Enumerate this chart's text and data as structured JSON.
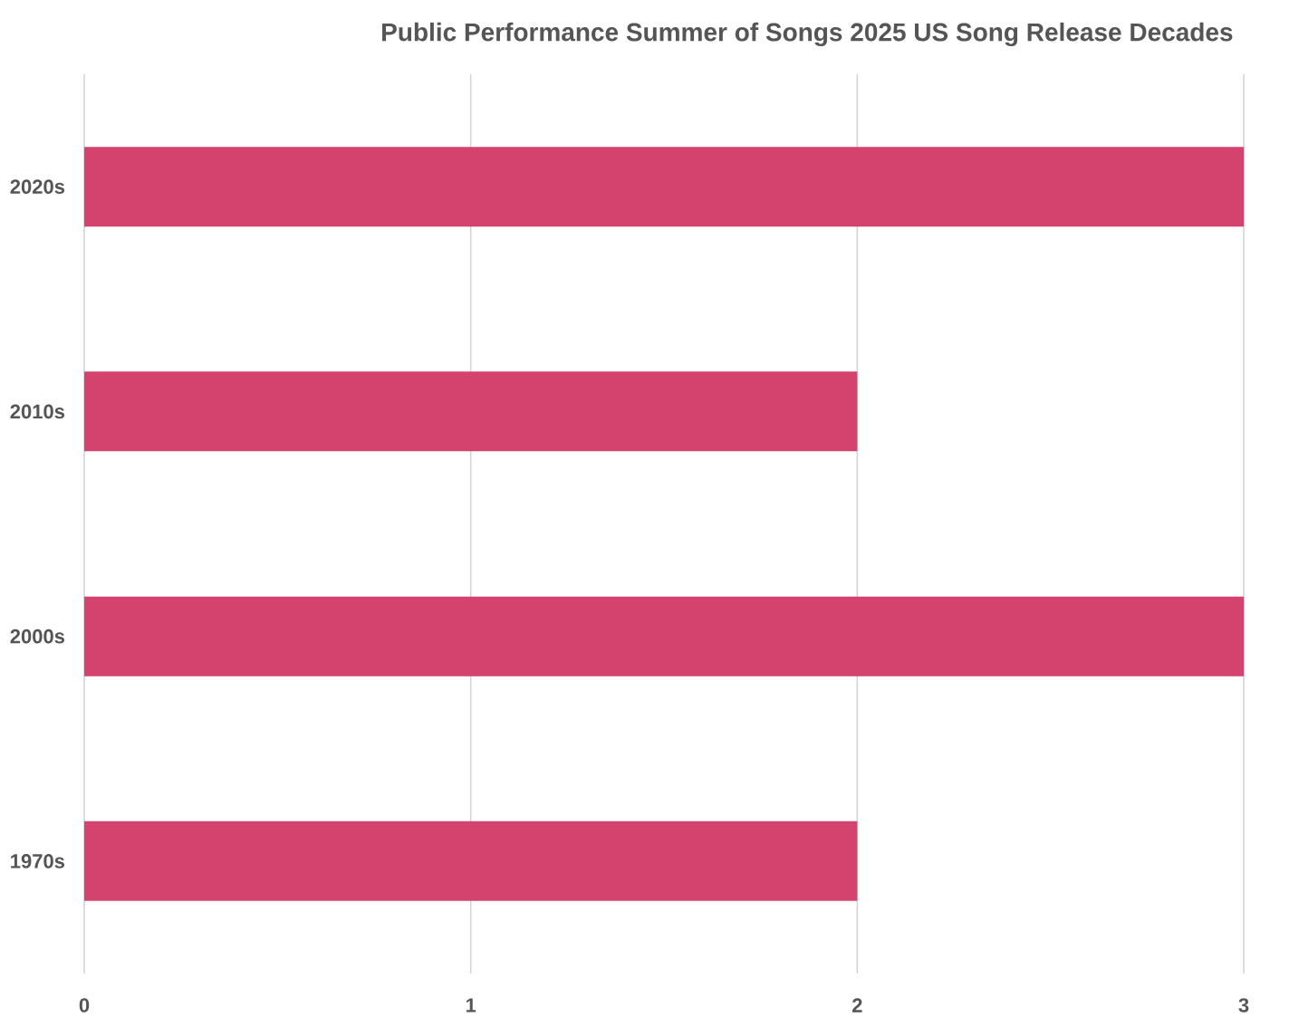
{
  "chart_data": {
    "type": "bar",
    "orientation": "horizontal",
    "title": "Public Performance Summer of Songs 2025 US Song Release Decades",
    "categories": [
      "2020s",
      "2010s",
      "2000s",
      "1970s"
    ],
    "values": [
      3,
      2,
      3,
      2
    ],
    "color": "#d4436d",
    "xlim": [
      0,
      3
    ],
    "xticks": [
      0,
      1,
      2,
      3
    ],
    "grid": "x"
  }
}
